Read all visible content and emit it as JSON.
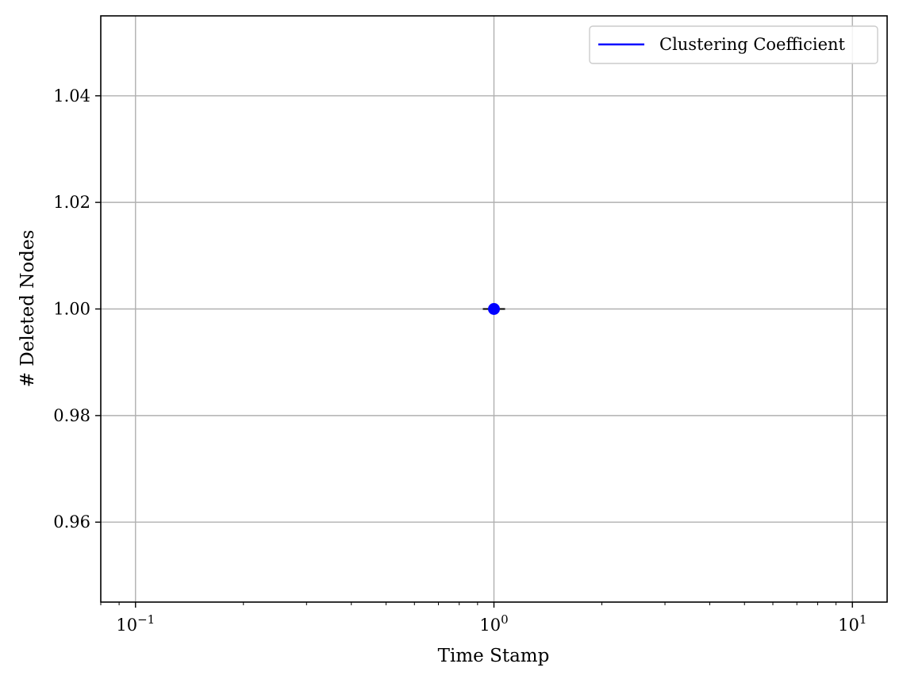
{
  "chart_data": {
    "type": "scatter",
    "title": "",
    "xlabel": "Time Stamp",
    "ylabel": "# Deleted Nodes",
    "xscale": "log",
    "xlim": [
      0.08,
      12.5
    ],
    "ylim": [
      0.945,
      1.055
    ],
    "xticks": [
      {
        "value": 0.1,
        "base": "10",
        "exp": "−1"
      },
      {
        "value": 1,
        "base": "10",
        "exp": "0"
      },
      {
        "value": 10,
        "base": "10",
        "exp": "1"
      }
    ],
    "yticks": [
      {
        "value": 0.96,
        "label": "0.96"
      },
      {
        "value": 0.98,
        "label": "0.98"
      },
      {
        "value": 1.0,
        "label": "1.00"
      },
      {
        "value": 1.02,
        "label": "1.02"
      },
      {
        "value": 1.04,
        "label": "1.04"
      }
    ],
    "grid": true,
    "legend_position": "top-right",
    "series": [
      {
        "name": "Clustering Coefficient",
        "color": "#0000ff",
        "marker": "circle",
        "points": [
          {
            "x": 1,
            "y": 1.0
          }
        ],
        "errorbar_color": "#000000"
      }
    ]
  }
}
